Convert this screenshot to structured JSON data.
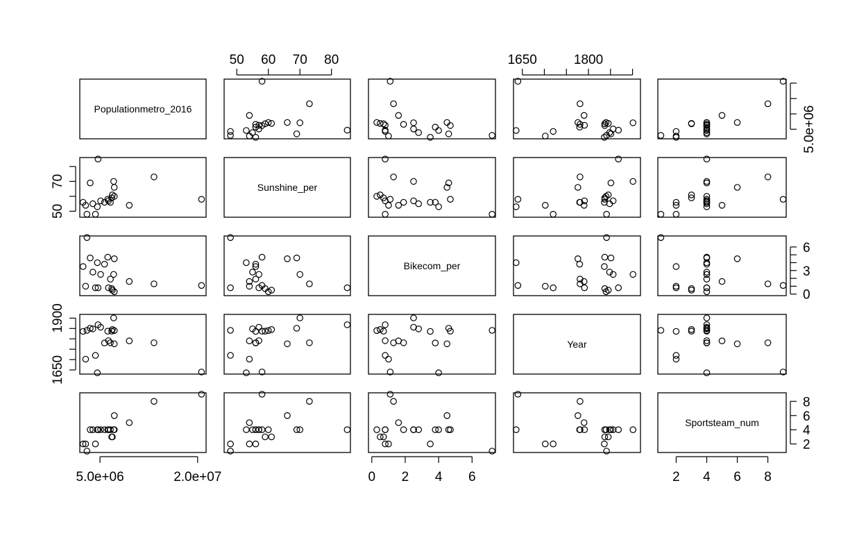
{
  "chart_data": {
    "type": "scatter",
    "subtype": "scatterplot-matrix",
    "title": "",
    "variables": [
      {
        "name": "Populationmetro_2016",
        "range": [
          1900000,
          21300000
        ],
        "ticks": [
          5000000,
          20000000
        ],
        "tick_labels": [
          "5.0e+06",
          "2.0e+07"
        ]
      },
      {
        "name": "Sunshine_per",
        "range": [
          46,
          86
        ],
        "ticks": [
          50,
          60,
          70,
          80
        ],
        "tick_labels": [
          "50",
          "60",
          "70",
          "80"
        ]
      },
      {
        "name": "Bikecom_per",
        "range": [
          -0.2,
          7.4
        ],
        "ticks": [
          0,
          2,
          4,
          6
        ],
        "tick_labels": [
          "0",
          "2",
          "4",
          "6"
        ]
      },
      {
        "name": "Year",
        "range": [
          1630,
          1918
        ],
        "ticks": [
          1650,
          1700,
          1750,
          1800,
          1850,
          1900
        ],
        "tick_labels": [
          "1650",
          "",
          "",
          "1800",
          "",
          ""
        ]
      },
      {
        "name": "Sportsteam_num",
        "range": [
          0.8,
          9.2
        ],
        "ticks": [
          2,
          4,
          6,
          8
        ],
        "tick_labels": [
          "2",
          "4",
          "6",
          "8"
        ]
      }
    ],
    "y_axis_ticks": {
      "Populationmetro_2016": {
        "ticks": [
          5000000,
          10000000,
          15000000,
          20000000
        ],
        "tick_labels": [
          "5.0e+06",
          "",
          "",
          ""
        ]
      },
      "Sunshine_per": {
        "ticks": [
          50,
          60,
          70,
          80
        ],
        "tick_labels": [
          "50",
          "",
          "70",
          ""
        ]
      },
      "Bikecom_per": {
        "ticks": [
          0,
          1,
          2,
          3,
          4,
          5,
          6
        ],
        "tick_labels": [
          "0",
          "",
          "",
          "3",
          "",
          "",
          "6"
        ]
      },
      "Year": {
        "ticks": [
          1650,
          1700,
          1750,
          1800,
          1850,
          1900
        ],
        "tick_labels": [
          "1650",
          "",
          "",
          "",
          "",
          "1900"
        ]
      },
      "Sportsteam_num": {
        "ticks": [
          2,
          4,
          6,
          8
        ],
        "tick_labels": [
          "2",
          "4",
          "6",
          "8"
        ]
      }
    },
    "observations": [
      {
        "Populationmetro_2016": 20600000,
        "Sunshine_per": 58,
        "Bikecom_per": 1.1,
        "Year": 1640,
        "Sportsteam_num": 9
      },
      {
        "Populationmetro_2016": 13300000,
        "Sunshine_per": 73,
        "Bikecom_per": 1.3,
        "Year": 1781,
        "Sportsteam_num": 8
      },
      {
        "Populationmetro_2016": 9500000,
        "Sunshine_per": 54,
        "Bikecom_per": 1.6,
        "Year": 1790,
        "Sportsteam_num": 5
      },
      {
        "Populationmetro_2016": 7200000,
        "Sunshine_per": 66,
        "Bikecom_per": 4.5,
        "Year": 1776,
        "Sportsteam_num": 6
      },
      {
        "Populationmetro_2016": 7200000,
        "Sunshine_per": 60,
        "Bikecom_per": 0.3,
        "Year": 1840,
        "Sportsteam_num": 4
      },
      {
        "Populationmetro_2016": 7100000,
        "Sunshine_per": 70,
        "Bikecom_per": 2.5,
        "Year": 1901,
        "Sportsteam_num": 4
      },
      {
        "Populationmetro_2016": 6900000,
        "Sunshine_per": 61,
        "Bikecom_per": 0.5,
        "Year": 1845,
        "Sportsteam_num": 3
      },
      {
        "Populationmetro_2016": 6800000,
        "Sunshine_per": 59,
        "Bikecom_per": 0.7,
        "Year": 1837,
        "Sportsteam_num": 3
      },
      {
        "Populationmetro_2016": 6600000,
        "Sunshine_per": 56,
        "Bikecom_per": 1.9,
        "Year": 1781,
        "Sportsteam_num": 4
      },
      {
        "Populationmetro_2016": 6300000,
        "Sunshine_per": 57,
        "Bikecom_per": 0.8,
        "Year": 1791,
        "Sportsteam_num": 4
      },
      {
        "Populationmetro_2016": 6200000,
        "Sunshine_per": 58,
        "Bikecom_per": 4.7,
        "Year": 1837,
        "Sportsteam_num": 4
      },
      {
        "Populationmetro_2016": 5700000,
        "Sunshine_per": 56,
        "Bikecom_per": 3.8,
        "Year": 1780,
        "Sportsteam_num": 4
      },
      {
        "Populationmetro_2016": 5100000,
        "Sunshine_per": 57,
        "Bikecom_per": 2.5,
        "Year": 1856,
        "Sportsteam_num": 4
      },
      {
        "Populationmetro_2016": 4700000,
        "Sunshine_per": 85,
        "Bikecom_per": 0.8,
        "Year": 1868,
        "Sportsteam_num": 4
      },
      {
        "Populationmetro_2016": 4600000,
        "Sunshine_per": 53,
        "Bikecom_per": 4.0,
        "Year": 1636,
        "Sportsteam_num": 4
      },
      {
        "Populationmetro_2016": 4300000,
        "Sunshine_per": 48,
        "Bikecom_per": 0.8,
        "Year": 1720,
        "Sportsteam_num": 2
      },
      {
        "Populationmetro_2016": 3900000,
        "Sunshine_per": 55,
        "Bikecom_per": 2.8,
        "Year": 1848,
        "Sportsteam_num": 4
      },
      {
        "Populationmetro_2016": 3500000,
        "Sunshine_per": 69,
        "Bikecom_per": 4.6,
        "Year": 1851,
        "Sportsteam_num": 4
      },
      {
        "Populationmetro_2016": 3000000,
        "Sunshine_per": 48,
        "Bikecom_per": 7.2,
        "Year": 1841,
        "Sportsteam_num": 1
      },
      {
        "Populationmetro_2016": 2800000,
        "Sunshine_per": 54,
        "Bikecom_per": 1.0,
        "Year": 1702,
        "Sportsteam_num": 2
      },
      {
        "Populationmetro_2016": 2400000,
        "Sunshine_per": 56,
        "Bikecom_per": 3.5,
        "Year": 1836,
        "Sportsteam_num": 2
      }
    ],
    "point_style": "open-circle",
    "grid": false,
    "legend": "none"
  }
}
